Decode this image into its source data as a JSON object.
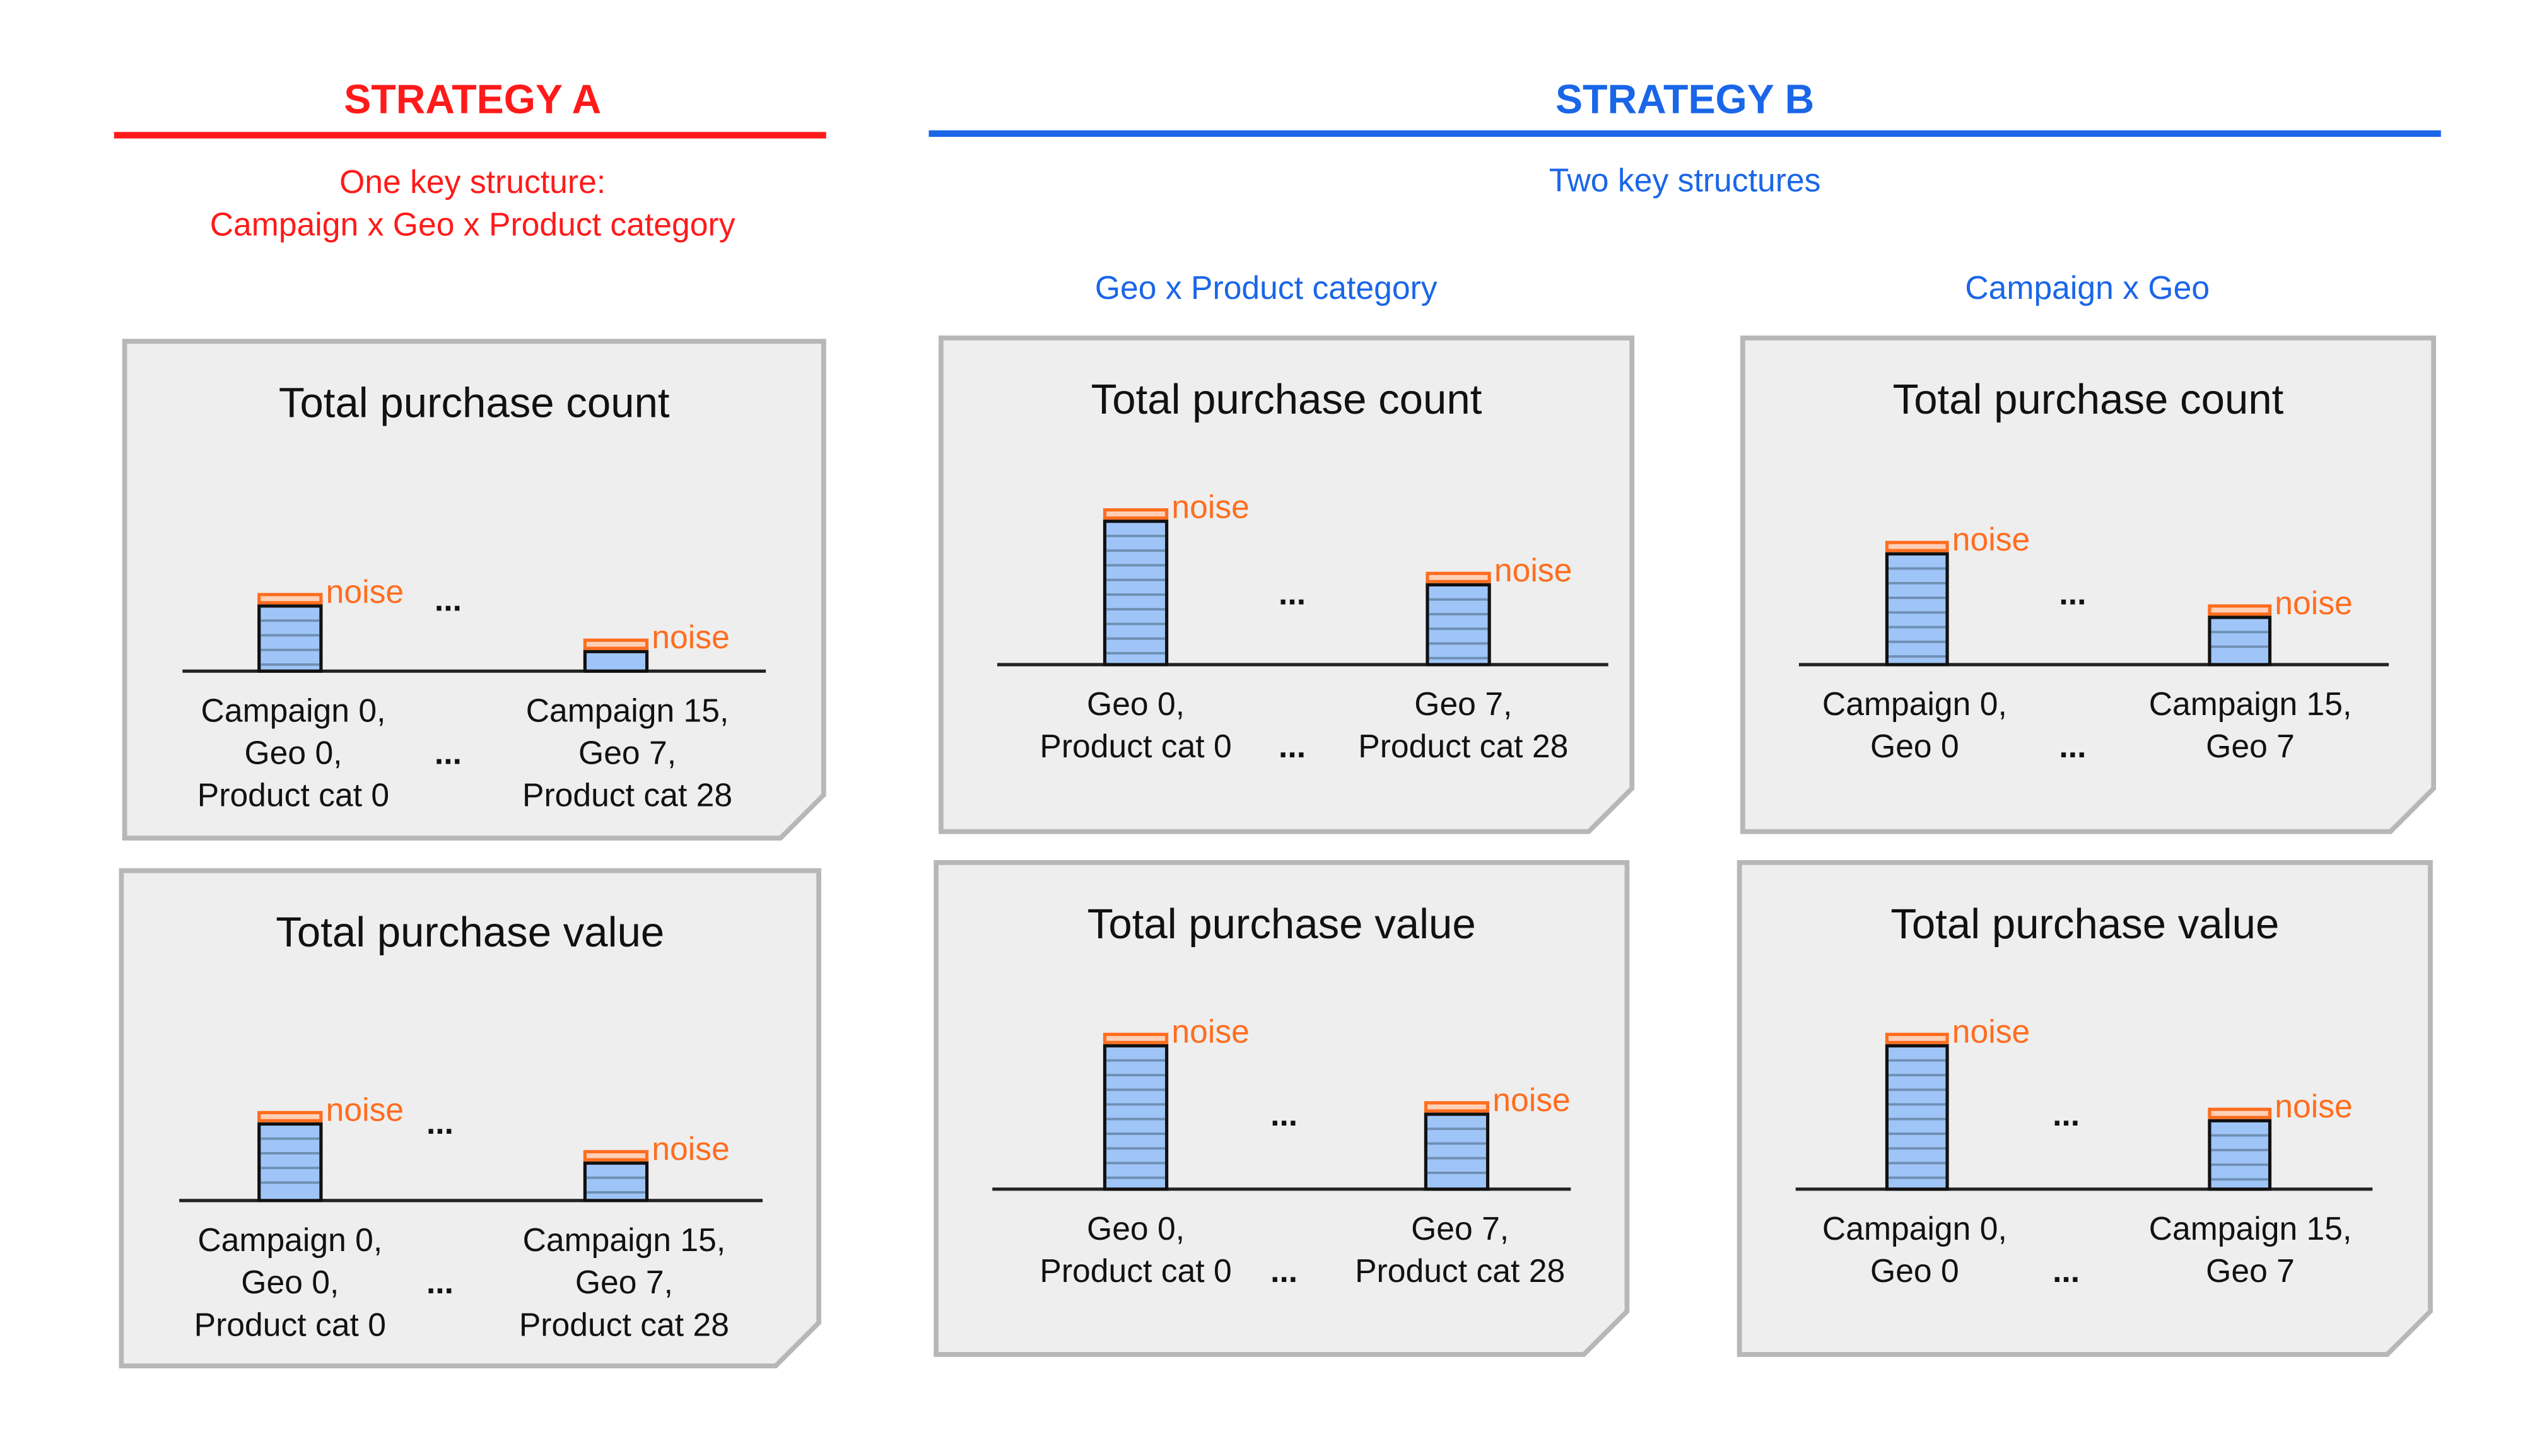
{
  "colors": {
    "strategy_a": "#ff1a1a",
    "strategy_b": "#1a66e8",
    "noise": "#ff6d1f",
    "bar": "#9fc5f8",
    "card": "#eeeeee",
    "card_border": "#b7b7b7"
  },
  "strategy_a": {
    "title": "STRATEGY A",
    "line1": "One key structure:",
    "line2": "Campaign x Geo x Product category"
  },
  "strategy_b": {
    "title": "STRATEGY B",
    "subtitle": "Two key structures",
    "col1": "Geo x Product category",
    "col2": "Campaign x Geo"
  },
  "cards": [
    {
      "title": "Total purchase count",
      "noise_label": "noise",
      "ellipsis": "...",
      "bars": [
        {
          "value": 40,
          "label": [
            "Campaign 0,",
            "Geo 0,",
            "Product cat 0"
          ]
        },
        {
          "value": 12,
          "label": [
            "Campaign 15,",
            "Geo 7,",
            "Product cat 28"
          ]
        }
      ]
    },
    {
      "title": "Total purchase value",
      "noise_label": "noise",
      "ellipsis": "...",
      "bars": [
        {
          "value": 47,
          "label": [
            "Campaign 0,",
            "Geo 0,",
            "Product cat 0"
          ]
        },
        {
          "value": 23,
          "label": [
            "Campaign 15,",
            "Geo 7,",
            "Product cat 28"
          ]
        }
      ]
    },
    {
      "title": "Total purchase count",
      "noise_label": "noise",
      "ellipsis": "...",
      "bars": [
        {
          "value": 88,
          "label": [
            "Geo 0,",
            "Product cat 0"
          ]
        },
        {
          "value": 49,
          "label": [
            "Geo 7,",
            "Product cat 28"
          ]
        }
      ]
    },
    {
      "title": "Total purchase value",
      "noise_label": "noise",
      "ellipsis": "...",
      "bars": [
        {
          "value": 88,
          "label": [
            "Geo 0,",
            "Product cat 0"
          ]
        },
        {
          "value": 46,
          "label": [
            "Geo 7,",
            "Product cat 28"
          ]
        }
      ]
    },
    {
      "title": "Total purchase count",
      "noise_label": "noise",
      "ellipsis": "...",
      "bars": [
        {
          "value": 68,
          "label": [
            "Campaign 0,",
            "Geo 0"
          ]
        },
        {
          "value": 29,
          "label": [
            "Campaign 15,",
            "Geo 7"
          ]
        }
      ]
    },
    {
      "title": "Total purchase value",
      "noise_label": "noise",
      "ellipsis": "...",
      "bars": [
        {
          "value": 88,
          "label": [
            "Campaign 0,",
            "Geo 0"
          ]
        },
        {
          "value": 42,
          "label": [
            "Campaign 15,",
            "Geo 7"
          ]
        }
      ]
    }
  ]
}
